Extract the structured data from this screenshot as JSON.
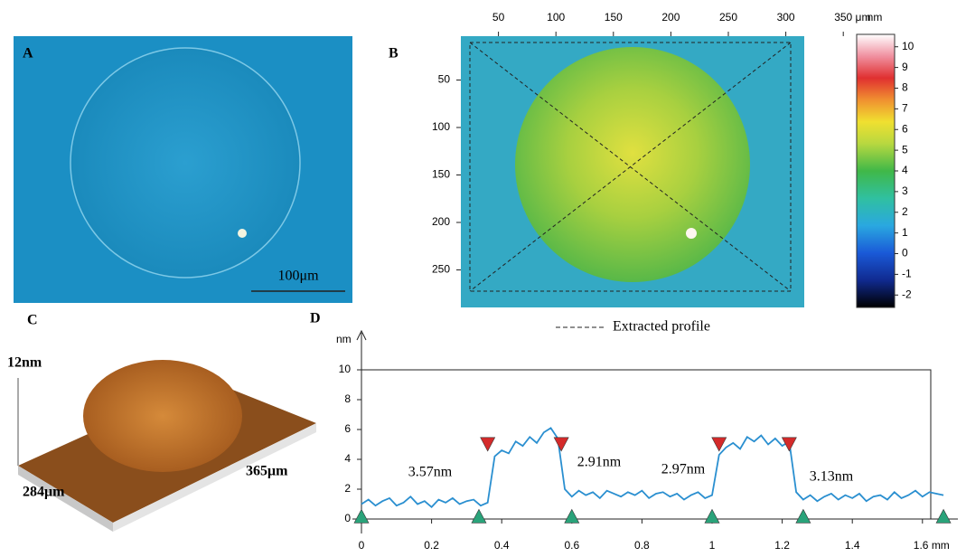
{
  "panels": {
    "a": {
      "label": "A",
      "scale_bar": "100μm"
    },
    "b": {
      "label": "B",
      "xticks": [
        50,
        100,
        150,
        200,
        250,
        300,
        {
          "value": 350,
          "label": "350 μm"
        }
      ],
      "yticks": [
        50,
        100,
        150,
        200,
        250
      ],
      "colorbar_unit": "nm",
      "colorbar_ticks": [
        10,
        9,
        8,
        7,
        6,
        5,
        4,
        3,
        2,
        1,
        0,
        -1,
        -2
      ],
      "colorbar_lim": [
        -2.6,
        10.6
      ],
      "legend": "Extracted profile"
    },
    "c": {
      "label": "C",
      "height": "12nm",
      "width": "284μm",
      "depth": "365μm"
    },
    "d": {
      "label": "D"
    }
  },
  "chart_data": {
    "type": "line",
    "ylabel": "nm",
    "color": "#2a8fd0",
    "x": [
      0,
      0.02,
      0.04,
      0.06,
      0.08,
      0.1,
      0.12,
      0.14,
      0.16,
      0.18,
      0.2,
      0.22,
      0.24,
      0.26,
      0.28,
      0.3,
      0.32,
      0.34,
      0.36,
      0.38,
      0.4,
      0.42,
      0.44,
      0.46,
      0.48,
      0.5,
      0.52,
      0.54,
      0.56,
      0.58,
      0.6,
      0.62,
      0.64,
      0.66,
      0.68,
      0.7,
      0.72,
      0.74,
      0.76,
      0.78,
      0.8,
      0.82,
      0.84,
      0.86,
      0.88,
      0.9,
      0.92,
      0.94,
      0.96,
      0.98,
      1,
      1.02,
      1.04,
      1.06,
      1.08,
      1.1,
      1.12,
      1.14,
      1.16,
      1.18,
      1.2,
      1.22,
      1.24,
      1.26,
      1.28,
      1.3,
      1.32,
      1.34,
      1.36,
      1.38,
      1.4,
      1.42,
      1.44,
      1.46,
      1.48,
      1.5,
      1.52,
      1.54,
      1.56,
      1.58,
      1.6,
      1.62,
      1.64,
      1.66
    ],
    "values": [
      1.0,
      1.3,
      0.9,
      1.2,
      1.4,
      0.9,
      1.1,
      1.5,
      1.0,
      1.2,
      0.8,
      1.3,
      1.1,
      1.4,
      1.0,
      1.2,
      1.3,
      0.9,
      1.1,
      4.2,
      4.6,
      4.4,
      5.2,
      4.9,
      5.5,
      5.1,
      5.8,
      6.1,
      5.4,
      2.0,
      1.5,
      1.9,
      1.6,
      1.8,
      1.4,
      1.9,
      1.7,
      1.5,
      1.8,
      1.6,
      1.9,
      1.4,
      1.7,
      1.8,
      1.5,
      1.7,
      1.3,
      1.6,
      1.8,
      1.4,
      1.6,
      4.3,
      4.8,
      5.1,
      4.7,
      5.5,
      5.2,
      5.6,
      5.0,
      5.4,
      4.9,
      5.2,
      1.8,
      1.3,
      1.6,
      1.2,
      1.5,
      1.7,
      1.3,
      1.6,
      1.4,
      1.7,
      1.2,
      1.5,
      1.6,
      1.3,
      1.8,
      1.4,
      1.6,
      1.9,
      1.5,
      1.8,
      1.7,
      1.6
    ],
    "markers_up": {
      "color": "#2aa37a",
      "x": [
        0,
        0.335,
        0.6,
        1.0,
        1.26,
        1.66
      ],
      "y": [
        0.1,
        0.1,
        0.1,
        0.1,
        0.1,
        0.1
      ]
    },
    "markers_down": {
      "color": "#d42a2a",
      "x": [
        0.36,
        0.57,
        1.02,
        1.22
      ],
      "y": [
        5.1,
        5.1,
        5.1,
        5.1
      ]
    },
    "annotations": [
      "3.57nm",
      "2.91nm",
      "2.97nm",
      "3.13nm"
    ],
    "xlim": [
      0,
      1.66
    ],
    "ylim": [
      0,
      10
    ],
    "xticks": [
      0,
      0.2,
      0.4,
      0.6,
      0.8,
      1,
      1.2,
      1.4,
      {
        "value": 1.6,
        "label": "1.6 mm"
      }
    ],
    "yticks": [
      0,
      2,
      4,
      6,
      8,
      10
    ]
  }
}
